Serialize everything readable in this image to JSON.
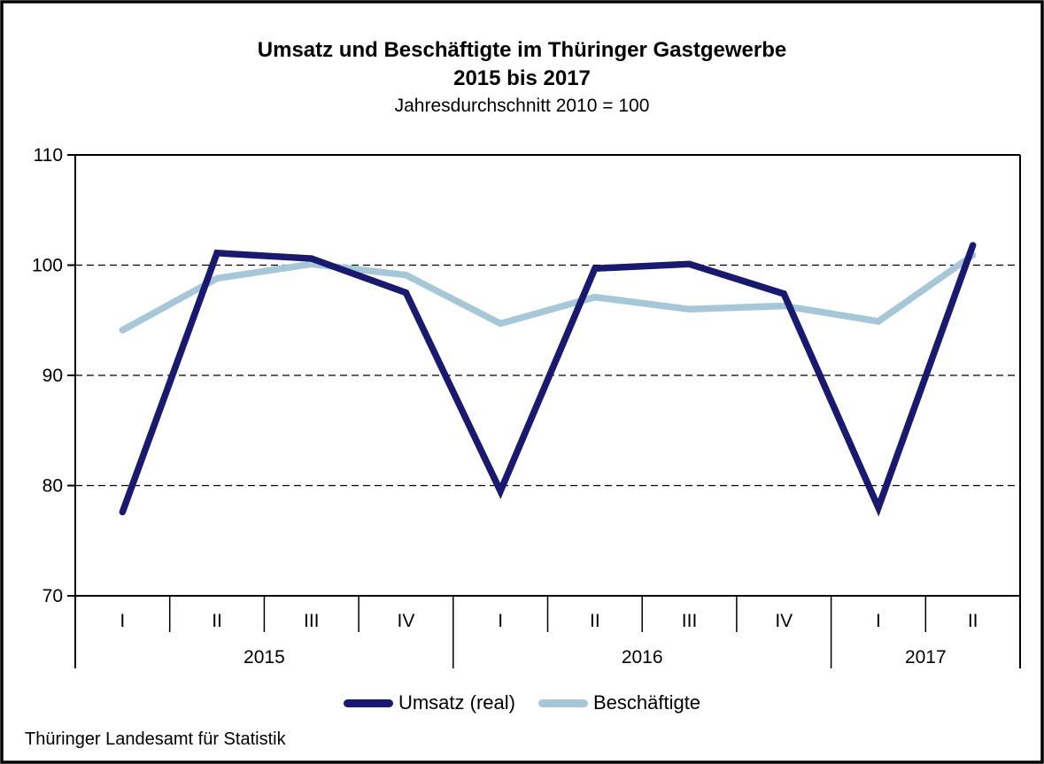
{
  "header": {
    "title_line1": "Umsatz und Beschäftigte im Thüringer Gastgewerbe",
    "title_line2": "2015 bis 2017",
    "subtitle": "Jahresdurchschnitt 2010 = 100"
  },
  "chart_data": {
    "type": "line",
    "categories": [
      "I",
      "II",
      "III",
      "IV",
      "I",
      "II",
      "III",
      "IV",
      "I",
      "II"
    ],
    "year_groups": [
      {
        "label": "2015",
        "count": 4
      },
      {
        "label": "2016",
        "count": 4
      },
      {
        "label": "2017",
        "count": 2
      }
    ],
    "series": [
      {
        "name": "Umsatz (real)",
        "color": "#191970",
        "values": [
          77.6,
          101.1,
          100.6,
          97.5,
          79.5,
          99.7,
          100.1,
          97.4,
          78.0,
          101.8
        ]
      },
      {
        "name": "Beschäftigte",
        "color": "#a6c7d8",
        "values": [
          94.1,
          98.8,
          100.1,
          99.1,
          94.7,
          97.1,
          96.0,
          96.3,
          94.9,
          100.9
        ]
      }
    ],
    "ylim": [
      70,
      110
    ],
    "y_ticks": [
      110,
      100,
      90,
      80,
      70
    ],
    "gridlines_at": [
      100,
      90,
      80
    ],
    "grid": "horizontal dashed",
    "legend_position": "bottom",
    "axis_color": "#000000"
  },
  "footer": {
    "source": "Thüringer Landesamt für Statistik"
  }
}
